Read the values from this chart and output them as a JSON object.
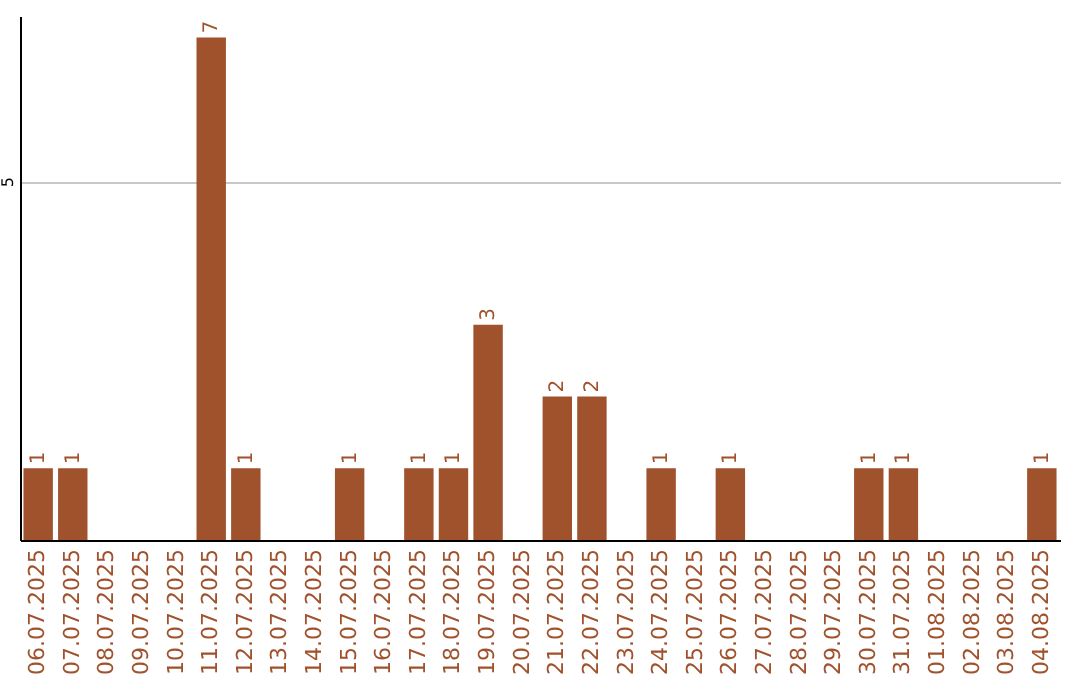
{
  "chart_data": {
    "type": "bar",
    "categories": [
      "06.07.2025",
      "07.07.2025",
      "08.07.2025",
      "09.07.2025",
      "10.07.2025",
      "11.07.2025",
      "12.07.2025",
      "13.07.2025",
      "14.07.2025",
      "15.07.2025",
      "16.07.2025",
      "17.07.2025",
      "18.07.2025",
      "19.07.2025",
      "20.07.2025",
      "21.07.2025",
      "22.07.2025",
      "23.07.2025",
      "24.07.2025",
      "25.07.2025",
      "26.07.2025",
      "27.07.2025",
      "28.07.2025",
      "29.07.2025",
      "30.07.2025",
      "31.07.2025",
      "01.08.2025",
      "02.08.2025",
      "03.08.2025",
      "04.08.2025"
    ],
    "values": [
      1,
      1,
      0,
      0,
      0,
      7,
      1,
      0,
      0,
      1,
      0,
      1,
      1,
      3,
      0,
      2,
      2,
      0,
      1,
      0,
      1,
      0,
      0,
      0,
      1,
      1,
      0,
      0,
      0,
      1
    ],
    "value_labels": [
      "1",
      "1",
      null,
      null,
      null,
      "7",
      "1",
      null,
      null,
      "1",
      null,
      "1",
      "1",
      "3",
      null,
      "2",
      "2",
      null,
      "1",
      null,
      "1",
      null,
      null,
      null,
      "1",
      "1",
      null,
      null,
      null,
      "1"
    ],
    "color": "#a0522d",
    "ylim": [
      0,
      7.3
    ],
    "yticks": [
      5
    ],
    "grid": "y"
  }
}
